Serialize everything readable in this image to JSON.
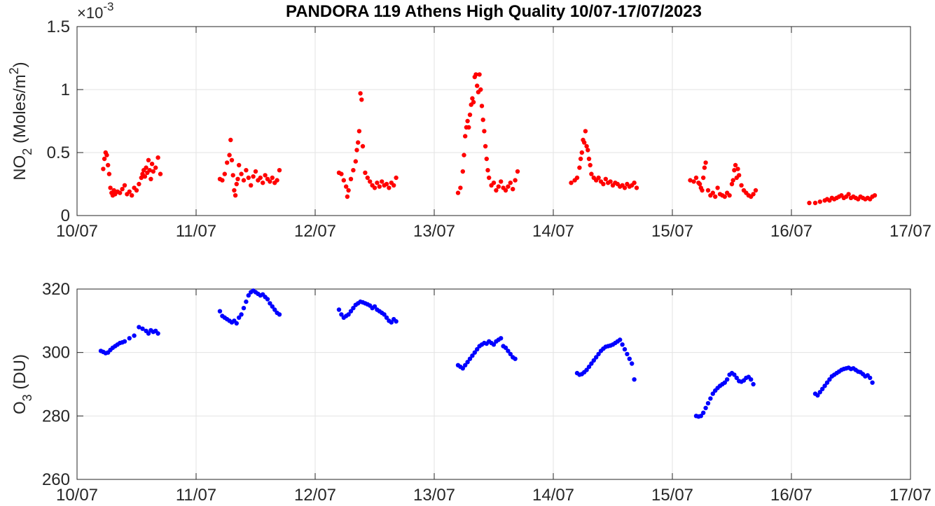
{
  "title": "PANDORA 119 Athens High Quality 10/07-17/07/2023",
  "chart_data": [
    {
      "type": "scatter",
      "ylabel": "NO2 (Moles/m2)",
      "ylabel_parts": {
        "a": "NO",
        "sub": "2",
        "b": " (Moles/m",
        "sup": "2",
        "c": ")"
      },
      "y_exponent_label": {
        "prefix": "×10",
        "sup": "-3"
      },
      "x_axis": "date (day of July 2023)",
      "xlim": [
        10,
        17
      ],
      "ylim": [
        0,
        0.0015
      ],
      "x_ticks": [
        10,
        11,
        12,
        13,
        14,
        15,
        16,
        17
      ],
      "x_tick_labels": [
        "10/07",
        "11/07",
        "12/07",
        "13/07",
        "14/07",
        "15/07",
        "16/07",
        "17/07"
      ],
      "y_ticks": [
        0,
        0.0005,
        0.001,
        0.0015
      ],
      "y_tick_labels": [
        "0",
        "0.5",
        "1",
        "1.5"
      ],
      "grid": true,
      "color": "#ff0000",
      "series": [
        {
          "x": [
            10.22,
            10.23,
            10.24,
            10.25,
            10.26,
            10.27,
            10.28,
            10.29,
            10.3,
            10.31,
            10.32,
            10.34,
            10.36,
            10.38,
            10.4,
            10.42,
            10.44,
            10.46,
            10.48,
            10.5,
            10.52,
            10.54,
            10.55,
            10.56,
            10.57,
            10.58,
            10.59,
            10.6,
            10.61,
            10.62,
            10.63,
            10.64,
            10.66,
            10.68,
            10.7,
            11.2,
            11.22,
            11.24,
            11.26,
            11.28,
            11.29,
            11.3,
            11.31,
            11.32,
            11.33,
            11.34,
            11.35,
            11.36,
            11.38,
            11.4,
            11.42,
            11.44,
            11.46,
            11.48,
            11.5,
            11.52,
            11.54,
            11.56,
            11.58,
            11.6,
            11.62,
            11.64,
            11.66,
            11.68,
            11.7,
            12.2,
            12.22,
            12.24,
            12.26,
            12.27,
            12.28,
            12.3,
            12.32,
            12.34,
            12.35,
            12.36,
            12.37,
            12.38,
            12.39,
            12.4,
            12.42,
            12.44,
            12.46,
            12.48,
            12.5,
            12.52,
            12.54,
            12.56,
            12.58,
            12.6,
            12.62,
            12.64,
            12.66,
            12.68,
            13.2,
            13.22,
            13.24,
            13.25,
            13.26,
            13.27,
            13.28,
            13.29,
            13.3,
            13.31,
            13.32,
            13.33,
            13.34,
            13.35,
            13.36,
            13.37,
            13.38,
            13.39,
            13.4,
            13.41,
            13.42,
            13.43,
            13.44,
            13.45,
            13.46,
            13.48,
            13.5,
            13.52,
            13.54,
            13.56,
            13.58,
            13.6,
            13.62,
            13.64,
            13.66,
            13.68,
            13.7,
            14.15,
            14.18,
            14.2,
            14.22,
            14.23,
            14.24,
            14.25,
            14.26,
            14.27,
            14.28,
            14.29,
            14.3,
            14.31,
            14.32,
            14.34,
            14.36,
            14.38,
            14.4,
            14.42,
            14.44,
            14.46,
            14.48,
            14.5,
            14.52,
            14.54,
            14.56,
            14.58,
            14.6,
            14.62,
            14.64,
            14.66,
            14.68,
            14.7,
            15.15,
            15.18,
            15.2,
            15.22,
            15.23,
            15.24,
            15.25,
            15.26,
            15.27,
            15.28,
            15.3,
            15.32,
            15.34,
            15.36,
            15.38,
            15.4,
            15.42,
            15.44,
            15.46,
            15.48,
            15.5,
            15.51,
            15.52,
            15.53,
            15.54,
            15.55,
            15.56,
            15.58,
            15.6,
            15.62,
            15.64,
            15.66,
            15.68,
            15.7,
            16.15,
            16.2,
            16.24,
            16.28,
            16.3,
            16.32,
            16.34,
            16.36,
            16.38,
            16.4,
            16.42,
            16.44,
            16.46,
            16.48,
            16.5,
            16.52,
            16.54,
            16.56,
            16.58,
            16.6,
            16.62,
            16.64,
            16.66,
            16.68,
            16.7
          ],
          "y": [
            0.00037,
            0.00045,
            0.0005,
            0.00048,
            0.0004,
            0.00033,
            0.00022,
            0.00018,
            0.00016,
            0.0002,
            0.00017,
            0.00019,
            0.00018,
            0.00021,
            0.00024,
            0.00017,
            0.00019,
            0.00016,
            0.00022,
            0.0002,
            0.00025,
            0.0003,
            0.00033,
            0.00036,
            0.00031,
            0.00038,
            0.00034,
            0.00044,
            0.00036,
            0.00029,
            0.00041,
            0.00035,
            0.00038,
            0.00046,
            0.00033,
            0.00029,
            0.00028,
            0.00033,
            0.00042,
            0.00048,
            0.0006,
            0.00044,
            0.00032,
            0.0002,
            0.00016,
            0.00025,
            0.00029,
            0.0004,
            0.00033,
            0.00028,
            0.00036,
            0.0003,
            0.00024,
            0.00031,
            0.00035,
            0.00028,
            0.0003,
            0.00026,
            0.00032,
            0.00029,
            0.00027,
            0.0003,
            0.00026,
            0.00028,
            0.00036,
            0.00034,
            0.00033,
            0.00028,
            0.00023,
            0.00015,
            0.0002,
            0.00029,
            0.00036,
            0.00043,
            0.00052,
            0.00058,
            0.00067,
            0.00097,
            0.00092,
            0.00055,
            0.00034,
            0.0003,
            0.00027,
            0.00024,
            0.00022,
            0.00026,
            0.00023,
            0.00027,
            0.00024,
            0.00025,
            0.00022,
            0.00026,
            0.00024,
            0.0003,
            0.00018,
            0.00022,
            0.00035,
            0.00048,
            0.00063,
            0.0007,
            0.00075,
            0.0007,
            0.0008,
            0.00088,
            0.00093,
            0.0009,
            0.0011,
            0.00112,
            0.00103,
            0.00098,
            0.00112,
            0.001,
            0.00087,
            0.00076,
            0.00067,
            0.00055,
            0.00045,
            0.00036,
            0.0003,
            0.00024,
            0.00026,
            0.0002,
            0.00023,
            0.00027,
            0.00022,
            0.0002,
            0.00023,
            0.00026,
            0.00021,
            0.00028,
            0.00035,
            0.00026,
            0.00028,
            0.0003,
            0.00038,
            0.00045,
            0.0005,
            0.0006,
            0.00058,
            0.00067,
            0.00055,
            0.00052,
            0.00045,
            0.0004,
            0.00033,
            0.0003,
            0.00028,
            0.0003,
            0.00027,
            0.00025,
            0.00029,
            0.00026,
            0.00027,
            0.00024,
            0.00026,
            0.00025,
            0.00023,
            0.00024,
            0.00022,
            0.00025,
            0.00023,
            0.00024,
            0.00026,
            0.00022,
            0.00028,
            0.00027,
            0.0003,
            0.00026,
            0.00025,
            0.00022,
            0.0002,
            0.0003,
            0.00038,
            0.00042,
            0.0002,
            0.00016,
            0.00018,
            0.00015,
            0.00022,
            0.00017,
            0.00016,
            0.00015,
            0.00018,
            0.00016,
            0.00025,
            0.00028,
            0.00036,
            0.0004,
            0.0003,
            0.00037,
            0.00032,
            0.00024,
            0.0002,
            0.00018,
            0.00016,
            0.00015,
            0.00017,
            0.0002,
            0.0001,
            0.0001,
            0.00011,
            0.00012,
            0.00013,
            0.00012,
            0.00014,
            0.00013,
            0.00014,
            0.00015,
            0.00016,
            0.00014,
            0.00015,
            0.00017,
            0.00014,
            0.00015,
            0.00014,
            0.00013,
            0.00015,
            0.00014,
            0.00013,
            0.00014,
            0.00013,
            0.00015,
            0.00016
          ]
        }
      ]
    },
    {
      "type": "scatter",
      "ylabel": "O3 (DU)",
      "ylabel_parts": {
        "a": "O",
        "sub": "3",
        "b": " (DU)"
      },
      "x_axis": "date (day of July 2023)",
      "xlim": [
        10,
        17
      ],
      "ylim": [
        260,
        320
      ],
      "x_ticks": [
        10,
        11,
        12,
        13,
        14,
        15,
        16,
        17
      ],
      "x_tick_labels": [
        "10/07",
        "11/07",
        "12/07",
        "13/07",
        "14/07",
        "15/07",
        "16/07",
        "17/07"
      ],
      "y_ticks": [
        260,
        280,
        300,
        320
      ],
      "y_tick_labels": [
        "260",
        "280",
        "300",
        "320"
      ],
      "grid": true,
      "color": "#0000ff",
      "series": [
        {
          "x": [
            10.2,
            10.22,
            10.24,
            10.26,
            10.28,
            10.3,
            10.32,
            10.34,
            10.36,
            10.38,
            10.4,
            10.44,
            10.48,
            10.52,
            10.55,
            10.58,
            10.6,
            10.62,
            10.64,
            10.66,
            10.68,
            11.2,
            11.22,
            11.24,
            11.26,
            11.28,
            11.3,
            11.32,
            11.34,
            11.36,
            11.38,
            11.4,
            11.42,
            11.44,
            11.46,
            11.48,
            11.5,
            11.52,
            11.54,
            11.56,
            11.58,
            11.6,
            11.62,
            11.64,
            11.66,
            11.68,
            11.7,
            12.2,
            12.22,
            12.24,
            12.26,
            12.28,
            12.3,
            12.32,
            12.34,
            12.36,
            12.38,
            12.4,
            12.42,
            12.44,
            12.46,
            12.48,
            12.5,
            12.52,
            12.54,
            12.56,
            12.58,
            12.6,
            12.62,
            12.64,
            12.66,
            12.68,
            13.2,
            13.22,
            13.24,
            13.26,
            13.28,
            13.3,
            13.32,
            13.34,
            13.36,
            13.38,
            13.4,
            13.42,
            13.44,
            13.46,
            13.48,
            13.5,
            13.52,
            13.54,
            13.56,
            13.58,
            13.6,
            13.62,
            13.64,
            13.66,
            13.68,
            14.2,
            14.22,
            14.24,
            14.26,
            14.28,
            14.3,
            14.32,
            14.34,
            14.36,
            14.38,
            14.4,
            14.42,
            14.44,
            14.46,
            14.48,
            14.5,
            14.52,
            14.54,
            14.56,
            14.58,
            14.6,
            14.62,
            14.64,
            14.66,
            14.68,
            15.2,
            15.22,
            15.24,
            15.26,
            15.28,
            15.3,
            15.32,
            15.34,
            15.36,
            15.38,
            15.4,
            15.42,
            15.44,
            15.46,
            15.48,
            15.5,
            15.52,
            15.54,
            15.56,
            15.58,
            15.6,
            15.62,
            15.64,
            15.66,
            15.68,
            16.2,
            16.22,
            16.24,
            16.26,
            16.28,
            16.3,
            16.32,
            16.34,
            16.36,
            16.38,
            16.4,
            16.42,
            16.44,
            16.46,
            16.48,
            16.5,
            16.52,
            16.54,
            16.56,
            16.58,
            16.6,
            16.62,
            16.64,
            16.66,
            16.68
          ],
          "y": [
            300.5,
            300.2,
            299.8,
            300.0,
            300.8,
            301.5,
            302.0,
            302.5,
            303.0,
            303.2,
            303.5,
            304.5,
            305.3,
            308.0,
            307.5,
            306.8,
            306.0,
            307.0,
            306.5,
            306.8,
            306.0,
            313.0,
            311.5,
            311.0,
            310.5,
            310.0,
            309.5,
            310.0,
            309.2,
            311.0,
            312.0,
            314.0,
            316.0,
            318.0,
            319.0,
            319.5,
            319.0,
            318.5,
            318.0,
            318.3,
            317.5,
            316.8,
            315.5,
            314.5,
            313.5,
            312.5,
            312.0,
            313.5,
            312.0,
            311.0,
            311.5,
            312.0,
            313.0,
            314.0,
            315.0,
            315.5,
            316.0,
            315.8,
            315.5,
            315.2,
            314.8,
            314.0,
            314.5,
            313.5,
            313.0,
            312.5,
            312.0,
            311.0,
            310.0,
            309.5,
            310.5,
            309.8,
            296.0,
            295.5,
            295.0,
            296.0,
            297.0,
            298.0,
            299.0,
            300.0,
            301.0,
            302.0,
            302.5,
            303.0,
            302.8,
            303.5,
            303.0,
            302.5,
            303.5,
            304.0,
            304.5,
            302.0,
            301.5,
            300.5,
            299.5,
            298.5,
            298.0,
            293.5,
            293.0,
            293.2,
            293.8,
            294.5,
            295.5,
            296.5,
            297.5,
            298.5,
            299.5,
            300.5,
            301.2,
            301.8,
            302.0,
            302.2,
            302.5,
            303.0,
            303.5,
            304.0,
            302.5,
            301.0,
            299.5,
            298.0,
            296.5,
            291.5,
            280.0,
            279.8,
            280.0,
            281.0,
            282.5,
            284.0,
            285.5,
            287.0,
            288.0,
            288.8,
            289.5,
            290.0,
            290.5,
            291.5,
            293.0,
            293.5,
            293.0,
            292.0,
            291.0,
            290.8,
            291.2,
            292.0,
            292.3,
            291.5,
            290.0,
            287.0,
            286.5,
            287.5,
            288.5,
            289.5,
            290.5,
            291.5,
            292.5,
            293.0,
            293.5,
            294.0,
            294.5,
            294.8,
            295.0,
            295.2,
            294.8,
            295.0,
            294.5,
            294.0,
            293.8,
            293.2,
            292.5,
            292.8,
            292.0,
            290.5
          ]
        }
      ]
    }
  ]
}
